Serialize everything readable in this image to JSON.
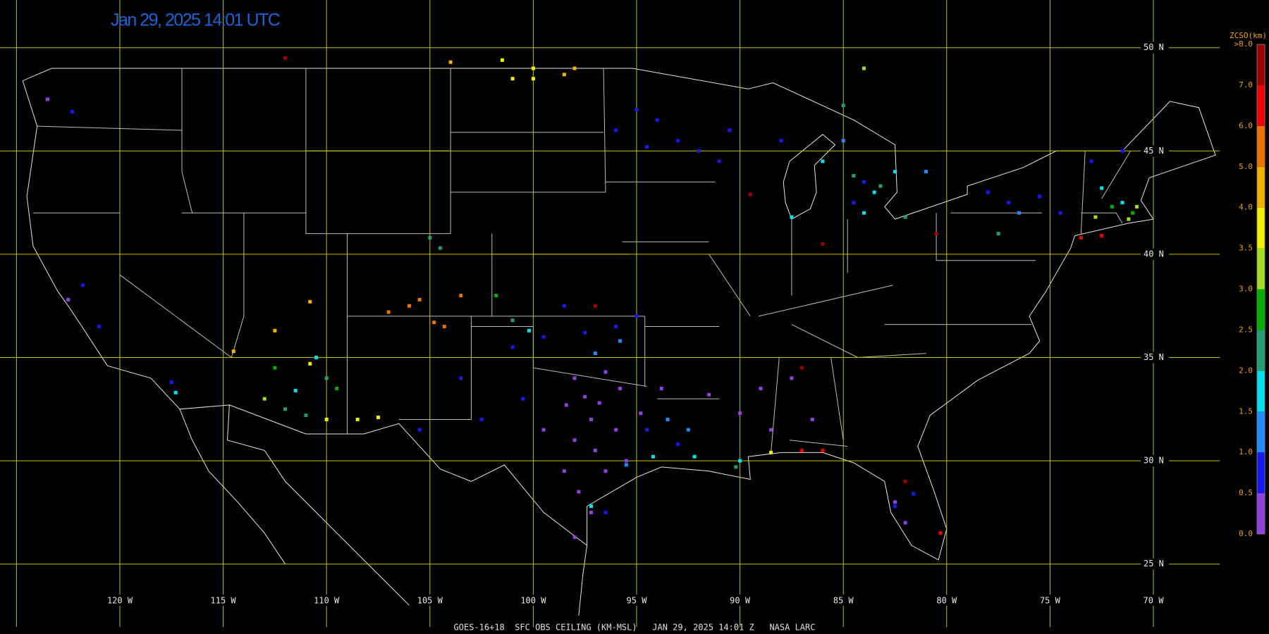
{
  "map": {
    "title": "Jan 29, 2025 14:01 UTC",
    "footer": "GOES-16+18  SFC OBS CEILING (KM-MSL)   JAN 29, 2025 14:01 Z   NASA LARC",
    "longitudes": [
      {
        "value": -120,
        "label": "120 W"
      },
      {
        "value": -115,
        "label": "115 W"
      },
      {
        "value": -110,
        "label": "110 W"
      },
      {
        "value": -105,
        "label": "105 W"
      },
      {
        "value": -100,
        "label": "100 W"
      },
      {
        "value": -95,
        "label": "95 W"
      },
      {
        "value": -90,
        "label": "90 W"
      },
      {
        "value": -85,
        "label": "85 W"
      },
      {
        "value": -80,
        "label": "80 W"
      },
      {
        "value": -75,
        "label": "75 W"
      },
      {
        "value": -70,
        "label": "70 W"
      }
    ],
    "latitudes": [
      {
        "value": 50,
        "label": "50 N"
      },
      {
        "value": 45,
        "label": "45 N"
      },
      {
        "value": 40,
        "label": "40 N"
      },
      {
        "value": 35,
        "label": "35 N"
      },
      {
        "value": 30,
        "label": "30 N"
      },
      {
        "value": 25,
        "label": "25 N"
      }
    ],
    "legend": {
      "title": "ZCSO(km)",
      "labels": [
        "0.0",
        "0.5",
        "1.0",
        "1.5",
        "2.0",
        "2.5",
        "3.0",
        "3.5",
        "4.0",
        "5.0",
        "6.0",
        "7.0",
        ">8.0"
      ],
      "colors": [
        "#9040e0",
        "#1818f0",
        "#1e8cff",
        "#00e0f0",
        "#20a070",
        "#00b000",
        "#a0e020",
        "#f0f000",
        "#f0b000",
        "#f07000",
        "#f00000",
        "#a00000"
      ]
    },
    "stations": [
      {
        "lon": -98.4,
        "lat": 32.7,
        "color": "#9040e0"
      },
      {
        "lon": -97.5,
        "lat": 33.1,
        "color": "#9040e0"
      },
      {
        "lon": -96.8,
        "lat": 32.8,
        "color": "#9040e0"
      },
      {
        "lon": -97.2,
        "lat": 32.0,
        "color": "#9040e0"
      },
      {
        "lon": -96.0,
        "lat": 31.5,
        "color": "#9040e0"
      },
      {
        "lon": -98.0,
        "lat": 31.0,
        "color": "#9040e0"
      },
      {
        "lon": -97.0,
        "lat": 30.5,
        "color": "#9040e0"
      },
      {
        "lon": -95.5,
        "lat": 30.0,
        "color": "#9040e0"
      },
      {
        "lon": -96.5,
        "lat": 29.5,
        "color": "#9040e0"
      },
      {
        "lon": -98.5,
        "lat": 29.5,
        "color": "#9040e0"
      },
      {
        "lon": -99.5,
        "lat": 31.5,
        "color": "#9040e0"
      },
      {
        "lon": -97.8,
        "lat": 28.5,
        "color": "#9040e0"
      },
      {
        "lon": -97.2,
        "lat": 27.5,
        "color": "#9040e0"
      },
      {
        "lon": -98.0,
        "lat": 26.3,
        "color": "#9040e0"
      },
      {
        "lon": -95.8,
        "lat": 33.5,
        "color": "#9040e0"
      },
      {
        "lon": -96.5,
        "lat": 34.3,
        "color": "#9040e0"
      },
      {
        "lon": -98.0,
        "lat": 34.0,
        "color": "#9040e0"
      },
      {
        "lon": -94.8,
        "lat": 32.3,
        "color": "#9040e0"
      },
      {
        "lon": -93.8,
        "lat": 33.5,
        "color": "#9040e0"
      },
      {
        "lon": -91.5,
        "lat": 33.2,
        "color": "#9040e0"
      },
      {
        "lon": -90.0,
        "lat": 32.3,
        "color": "#9040e0"
      },
      {
        "lon": -89.0,
        "lat": 33.5,
        "color": "#9040e0"
      },
      {
        "lon": -88.5,
        "lat": 31.5,
        "color": "#9040e0"
      },
      {
        "lon": -87.5,
        "lat": 34.0,
        "color": "#9040e0"
      },
      {
        "lon": -86.5,
        "lat": 32.0,
        "color": "#9040e0"
      },
      {
        "lon": -82.5,
        "lat": 28.0,
        "color": "#9040e0"
      },
      {
        "lon": -82.0,
        "lat": 27.0,
        "color": "#9040e0"
      },
      {
        "lon": -122.5,
        "lat": 37.8,
        "color": "#9040e0"
      },
      {
        "lon": -123.5,
        "lat": 47.5,
        "color": "#9040e0"
      },
      {
        "lon": -101.0,
        "lat": 35.5,
        "color": "#1818f0"
      },
      {
        "lon": -99.5,
        "lat": 36.0,
        "color": "#1818f0"
      },
      {
        "lon": -97.5,
        "lat": 36.2,
        "color": "#1818f0"
      },
      {
        "lon": -96.0,
        "lat": 36.5,
        "color": "#1818f0"
      },
      {
        "lon": -95.0,
        "lat": 37.0,
        "color": "#1818f0"
      },
      {
        "lon": -98.5,
        "lat": 37.5,
        "color": "#1818f0"
      },
      {
        "lon": -103.5,
        "lat": 34.0,
        "color": "#1818f0"
      },
      {
        "lon": -100.5,
        "lat": 33.0,
        "color": "#1818f0"
      },
      {
        "lon": -102.5,
        "lat": 32.0,
        "color": "#1818f0"
      },
      {
        "lon": -94.5,
        "lat": 31.5,
        "color": "#1818f0"
      },
      {
        "lon": -93.0,
        "lat": 30.8,
        "color": "#1818f0"
      },
      {
        "lon": -95.0,
        "lat": 47.0,
        "color": "#1818f0"
      },
      {
        "lon": -94.0,
        "lat": 46.5,
        "color": "#1818f0"
      },
      {
        "lon": -93.0,
        "lat": 45.5,
        "color": "#1818f0"
      },
      {
        "lon": -92.0,
        "lat": 45.0,
        "color": "#1818f0"
      },
      {
        "lon": -94.5,
        "lat": 45.2,
        "color": "#1818f0"
      },
      {
        "lon": -96.0,
        "lat": 46.0,
        "color": "#1818f0"
      },
      {
        "lon": -91.0,
        "lat": 44.5,
        "color": "#1818f0"
      },
      {
        "lon": -90.5,
        "lat": 46.0,
        "color": "#1818f0"
      },
      {
        "lon": -88.0,
        "lat": 45.5,
        "color": "#1818f0"
      },
      {
        "lon": -84.0,
        "lat": 43.5,
        "color": "#1818f0"
      },
      {
        "lon": -84.5,
        "lat": 42.5,
        "color": "#1818f0"
      },
      {
        "lon": -78.0,
        "lat": 43.0,
        "color": "#1818f0"
      },
      {
        "lon": -77.0,
        "lat": 42.5,
        "color": "#1818f0"
      },
      {
        "lon": -75.5,
        "lat": 42.8,
        "color": "#1818f0"
      },
      {
        "lon": -74.5,
        "lat": 42.0,
        "color": "#1818f0"
      },
      {
        "lon": -73.0,
        "lat": 44.5,
        "color": "#1818f0"
      },
      {
        "lon": -71.5,
        "lat": 45.0,
        "color": "#1818f0"
      },
      {
        "lon": -121.8,
        "lat": 38.5,
        "color": "#1818f0"
      },
      {
        "lon": -121.0,
        "lat": 36.5,
        "color": "#1818f0"
      },
      {
        "lon": -117.5,
        "lat": 33.8,
        "color": "#1818f0"
      },
      {
        "lon": -122.3,
        "lat": 46.9,
        "color": "#1818f0"
      },
      {
        "lon": -82.5,
        "lat": 27.8,
        "color": "#1818f0"
      },
      {
        "lon": -81.6,
        "lat": 28.4,
        "color": "#1818f0"
      },
      {
        "lon": -105.5,
        "lat": 31.5,
        "color": "#1818f0"
      },
      {
        "lon": -96.5,
        "lat": 27.5,
        "color": "#1818f0"
      },
      {
        "lon": -97.0,
        "lat": 35.2,
        "color": "#1e8cff"
      },
      {
        "lon": -95.8,
        "lat": 35.8,
        "color": "#1e8cff"
      },
      {
        "lon": -93.5,
        "lat": 32.0,
        "color": "#1e8cff"
      },
      {
        "lon": -92.5,
        "lat": 31.5,
        "color": "#1e8cff"
      },
      {
        "lon": -95.5,
        "lat": 29.8,
        "color": "#1e8cff"
      },
      {
        "lon": -85.0,
        "lat": 45.5,
        "color": "#1e8cff"
      },
      {
        "lon": -81.0,
        "lat": 44.0,
        "color": "#1e8cff"
      },
      {
        "lon": -76.5,
        "lat": 42.0,
        "color": "#1e8cff"
      },
      {
        "lon": -94.2,
        "lat": 30.2,
        "color": "#00e0f0"
      },
      {
        "lon": -92.2,
        "lat": 30.2,
        "color": "#00e0f0"
      },
      {
        "lon": -97.2,
        "lat": 27.8,
        "color": "#00e0f0"
      },
      {
        "lon": -90.0,
        "lat": 30.0,
        "color": "#00e0f0"
      },
      {
        "lon": -83.5,
        "lat": 43.0,
        "color": "#00e0f0"
      },
      {
        "lon": -84.0,
        "lat": 42.0,
        "color": "#00e0f0"
      },
      {
        "lon": -86.0,
        "lat": 44.5,
        "color": "#00e0f0"
      },
      {
        "lon": -82.5,
        "lat": 44.0,
        "color": "#00e0f0"
      },
      {
        "lon": -71.5,
        "lat": 42.5,
        "color": "#00e0f0"
      },
      {
        "lon": -72.5,
        "lat": 43.2,
        "color": "#00e0f0"
      },
      {
        "lon": -111.5,
        "lat": 33.4,
        "color": "#00e0f0"
      },
      {
        "lon": -110.5,
        "lat": 35.0,
        "color": "#00e0f0"
      },
      {
        "lon": -117.3,
        "lat": 33.3,
        "color": "#00e0f0"
      },
      {
        "lon": -100.2,
        "lat": 36.3,
        "color": "#00e0f0"
      },
      {
        "lon": -87.5,
        "lat": 41.8,
        "color": "#00e0f0"
      },
      {
        "lon": -105.0,
        "lat": 40.8,
        "color": "#20a070"
      },
      {
        "lon": -104.5,
        "lat": 40.3,
        "color": "#20a070"
      },
      {
        "lon": -84.5,
        "lat": 43.8,
        "color": "#20a070"
      },
      {
        "lon": -83.2,
        "lat": 43.3,
        "color": "#20a070"
      },
      {
        "lon": -82.0,
        "lat": 41.8,
        "color": "#20a070"
      },
      {
        "lon": -112.0,
        "lat": 32.5,
        "color": "#20a070"
      },
      {
        "lon": -111.0,
        "lat": 32.2,
        "color": "#20a070"
      },
      {
        "lon": -110.0,
        "lat": 34.0,
        "color": "#20a070"
      },
      {
        "lon": -101.0,
        "lat": 36.8,
        "color": "#20a070"
      },
      {
        "lon": -85.0,
        "lat": 47.2,
        "color": "#20a070"
      },
      {
        "lon": -77.5,
        "lat": 41.0,
        "color": "#20a070"
      },
      {
        "lon": -90.2,
        "lat": 29.7,
        "color": "#20a070"
      },
      {
        "lon": -112.5,
        "lat": 34.5,
        "color": "#00b000"
      },
      {
        "lon": -101.8,
        "lat": 38.0,
        "color": "#00b000"
      },
      {
        "lon": -109.5,
        "lat": 33.5,
        "color": "#00b000"
      },
      {
        "lon": -71.0,
        "lat": 42.0,
        "color": "#00b000"
      },
      {
        "lon": -72.0,
        "lat": 42.3,
        "color": "#00b000"
      },
      {
        "lon": -70.8,
        "lat": 42.3,
        "color": "#a0e020"
      },
      {
        "lon": -71.2,
        "lat": 41.7,
        "color": "#a0e020"
      },
      {
        "lon": -113.0,
        "lat": 33.0,
        "color": "#a0e020"
      },
      {
        "lon": -84.0,
        "lat": 49.0,
        "color": "#a0e020"
      },
      {
        "lon": -72.8,
        "lat": 41.8,
        "color": "#a0e020"
      },
      {
        "lon": -110.0,
        "lat": 32.0,
        "color": "#f0f000"
      },
      {
        "lon": -108.5,
        "lat": 32.0,
        "color": "#f0f000"
      },
      {
        "lon": -107.5,
        "lat": 32.1,
        "color": "#f0f000"
      },
      {
        "lon": -101.5,
        "lat": 49.4,
        "color": "#f0f000"
      },
      {
        "lon": -100.0,
        "lat": 49.0,
        "color": "#f0f000"
      },
      {
        "lon": -100.0,
        "lat": 48.5,
        "color": "#f0f000"
      },
      {
        "lon": -101.0,
        "lat": 48.5,
        "color": "#f0f000"
      },
      {
        "lon": -110.8,
        "lat": 34.7,
        "color": "#f0f000"
      },
      {
        "lon": -88.5,
        "lat": 30.4,
        "color": "#f0f000"
      },
      {
        "lon": -104.0,
        "lat": 49.3,
        "color": "#f0b000"
      },
      {
        "lon": -112.5,
        "lat": 36.3,
        "color": "#f0b000"
      },
      {
        "lon": -110.8,
        "lat": 37.7,
        "color": "#f0b000"
      },
      {
        "lon": -114.5,
        "lat": 35.3,
        "color": "#f0b000"
      },
      {
        "lon": -98.5,
        "lat": 48.7,
        "color": "#f0b000"
      },
      {
        "lon": -98.0,
        "lat": 49.0,
        "color": "#f0b000"
      },
      {
        "lon": -107.0,
        "lat": 37.2,
        "color": "#f07000"
      },
      {
        "lon": -106.0,
        "lat": 37.5,
        "color": "#f07000"
      },
      {
        "lon": -105.5,
        "lat": 37.8,
        "color": "#f07000"
      },
      {
        "lon": -104.8,
        "lat": 36.7,
        "color": "#f07000"
      },
      {
        "lon": -104.3,
        "lat": 36.5,
        "color": "#f07000"
      },
      {
        "lon": -103.5,
        "lat": 38.0,
        "color": "#f07000"
      },
      {
        "lon": -72.5,
        "lat": 40.9,
        "color": "#f00000"
      },
      {
        "lon": -73.5,
        "lat": 40.8,
        "color": "#f00000"
      },
      {
        "lon": -87.0,
        "lat": 30.5,
        "color": "#f00000"
      },
      {
        "lon": -86.0,
        "lat": 30.5,
        "color": "#f00000"
      },
      {
        "lon": -80.3,
        "lat": 26.5,
        "color": "#f00000"
      },
      {
        "lon": -112.0,
        "lat": 49.5,
        "color": "#a00000"
      },
      {
        "lon": -97.0,
        "lat": 37.5,
        "color": "#a00000"
      },
      {
        "lon": -89.5,
        "lat": 42.9,
        "color": "#a00000"
      },
      {
        "lon": -86.0,
        "lat": 40.5,
        "color": "#a00000"
      },
      {
        "lon": -80.5,
        "lat": 41.0,
        "color": "#a00000"
      },
      {
        "lon": -87.0,
        "lat": 34.5,
        "color": "#a00000"
      },
      {
        "lon": -82.0,
        "lat": 29.0,
        "color": "#a00000"
      }
    ]
  }
}
